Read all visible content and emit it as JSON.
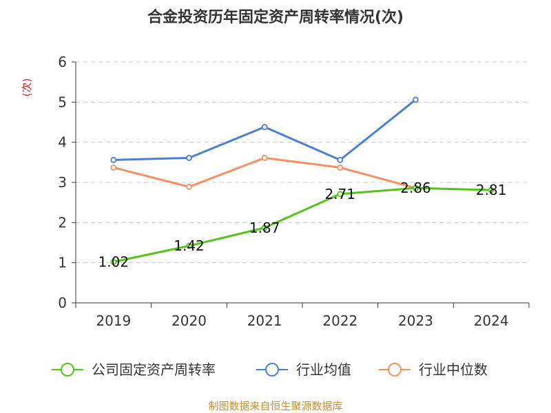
{
  "chart_data": {
    "type": "line",
    "title": "合金投资历年固定资产周转率情况(次)",
    "ylabel": "(次)",
    "xlabel": "",
    "categories": [
      "2019",
      "2020",
      "2021",
      "2022",
      "2023",
      "2024"
    ],
    "ylim": [
      0,
      6
    ],
    "yticks": [
      0,
      1,
      2,
      3,
      4,
      5,
      6
    ],
    "grid": true,
    "legend_position": "bottom",
    "series": [
      {
        "name": "公司固定资产周转率",
        "color": "#52c41a",
        "values": [
          1.02,
          1.42,
          1.87,
          2.71,
          2.86,
          2.81
        ],
        "labels": [
          "1.02",
          "1.42",
          "1.87",
          "2.71",
          "2.86",
          "2.81"
        ]
      },
      {
        "name": "行业均值",
        "color": "#4a7fd6",
        "values": [
          3.56,
          3.61,
          4.38,
          3.56,
          5.06,
          null
        ]
      },
      {
        "name": "行业中位数",
        "color": "#f79060",
        "values": [
          3.37,
          2.89,
          3.61,
          3.37,
          2.86,
          null
        ]
      }
    ]
  },
  "source": "制图数据来自恒生聚源数据库"
}
